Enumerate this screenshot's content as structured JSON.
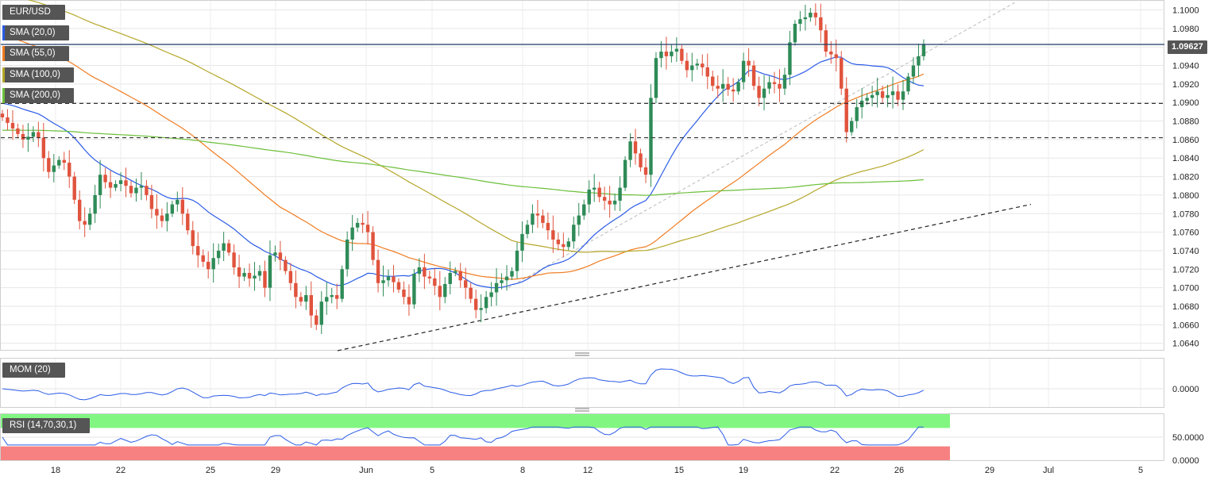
{
  "pair_label": "EUR/USD",
  "indicators": {
    "sma20": "SMA (20,0)",
    "sma55": "SMA (55,0)",
    "sma100": "SMA (100,0)",
    "sma200": "SMA (200,0)",
    "mom": "MOM (20)",
    "rsi": "RSI (14,70,30,1)"
  },
  "colors": {
    "bull": "#2e8b57",
    "bear": "#e0533d",
    "sma20": "#2b5ce6",
    "sma55": "#f07c22",
    "sma100": "#b5a72a",
    "sma200": "#6cbf3a",
    "rsi_overbought": "#7af57a",
    "rsi_oversold": "#f77a7a"
  },
  "current_price": "1.09627",
  "chart_data": {
    "type": "candlestick",
    "title": "EUR/USD",
    "ylim": [
      1.0632,
      1.1009
    ],
    "y_ticks": [
      "1.1000",
      "1.0980",
      "1.0960",
      "1.0940",
      "1.0920",
      "1.0900",
      "1.0880",
      "1.0860",
      "1.0840",
      "1.0820",
      "1.0800",
      "1.0780",
      "1.0760",
      "1.0740",
      "1.0720",
      "1.0700",
      "1.0680",
      "1.0660",
      "1.0640"
    ],
    "x_labels": [
      "18",
      "22",
      "25",
      "29",
      "Jun",
      "5",
      "8",
      "12",
      "15",
      "19",
      "22",
      "26",
      "29",
      "Jul",
      "5"
    ],
    "horizontal_levels": [
      {
        "value": 1.09627,
        "style": "solid"
      },
      {
        "value": 1.0899,
        "style": "dashed"
      },
      {
        "value": 1.0862,
        "style": "dashed"
      }
    ],
    "close_series": [
      1.0884,
      1.0878,
      1.0872,
      1.0866,
      1.086,
      1.0863,
      1.0868,
      1.0862,
      1.084,
      1.0825,
      1.0832,
      1.0838,
      1.0835,
      1.082,
      1.0795,
      1.0772,
      1.0768,
      1.078,
      1.08,
      1.0822,
      1.0814,
      1.0808,
      1.0812,
      1.0816,
      1.081,
      1.0802,
      1.0808,
      1.081,
      1.08,
      1.0785,
      1.0778,
      1.0772,
      1.078,
      1.079,
      1.0795,
      1.078,
      1.0762,
      1.0745,
      1.0735,
      1.0728,
      1.072,
      1.0732,
      1.074,
      1.0748,
      1.0738,
      1.0722,
      1.0712,
      1.0716,
      1.071,
      1.0713,
      1.0718,
      1.07,
      1.0735,
      1.0738,
      1.073,
      1.0718,
      1.0705,
      1.069,
      1.0685,
      1.0692,
      1.067,
      1.066,
      1.0685,
      1.069,
      1.0692,
      1.0688,
      1.072,
      1.0752,
      1.0765,
      1.077,
      1.0768,
      1.076,
      1.073,
      1.0705,
      1.0708,
      1.0712,
      1.0706,
      1.0698,
      1.069,
      1.0682,
      1.0715,
      1.0722,
      1.0712,
      1.071,
      1.0702,
      1.069,
      1.0704,
      1.0716,
      1.0718,
      1.0708,
      1.07,
      1.0688,
      1.0676,
      1.0678,
      1.069,
      1.0695,
      1.0705,
      1.0708,
      1.0712,
      1.0718,
      1.074,
      1.0758,
      1.0768,
      1.078,
      1.0778,
      1.077,
      1.0762,
      1.0752,
      1.0747,
      1.0744,
      1.075,
      1.0768,
      1.0778,
      1.079,
      1.0806,
      1.0808,
      1.0798,
      1.0794,
      1.079,
      1.0794,
      1.0808,
      1.0838,
      1.0858,
      1.0845,
      1.083,
      1.0822,
      1.0905,
      1.0948,
      1.0955,
      1.095,
      1.0955,
      1.0958,
      1.0945,
      1.0935,
      1.094,
      1.0942,
      1.0938,
      1.0928,
      1.0918,
      1.0915,
      1.092,
      1.0914,
      1.0912,
      1.0922,
      1.0945,
      1.094,
      1.0918,
      1.0905,
      1.0915,
      1.0922,
      1.092,
      1.0915,
      1.093,
      1.0965,
      1.0985,
      1.099,
      1.0992,
      1.0997,
      1.0992,
      1.0978,
      1.0955,
      1.0952,
      1.0948,
      1.0915,
      1.0868,
      1.088,
      1.0895,
      1.0902,
      1.0905,
      1.0908,
      1.0912,
      1.0905,
      1.0908,
      1.0912,
      1.0903,
      1.0912,
      1.0928,
      1.094,
      1.095,
      1.0963
    ],
    "mom_zero_label": "0.0000",
    "rsi_ticks": [
      "50.0000",
      "0.0000"
    ]
  }
}
